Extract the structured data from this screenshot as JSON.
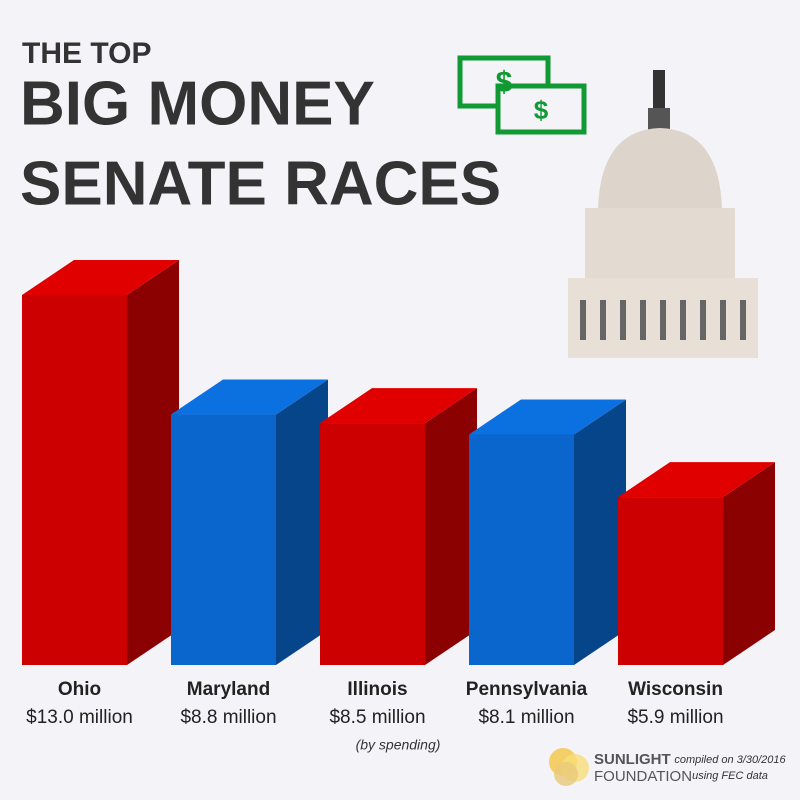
{
  "chart_data": {
    "type": "bar3d",
    "title_lines": [
      "THE TOP",
      "BIG MONEY",
      "SENATE RACES"
    ],
    "categories": [
      "Ohio",
      "Maryland",
      "Illinois",
      "Pennsylvania",
      "Wisconsin"
    ],
    "values": [
      13.0,
      8.8,
      8.5,
      8.1,
      5.9
    ],
    "value_labels": [
      "$13.0 million",
      "$8.8 million",
      "$8.5 million",
      "$8.1 million",
      "$5.9 million"
    ],
    "colors": [
      "#cc0000",
      "#0a66cc",
      "#cc0000",
      "#0a66cc",
      "#cc0000"
    ],
    "note": "(by spending)",
    "source_org": [
      "SUNLIGHT",
      "FOUNDATION"
    ],
    "source_note": [
      "compiled on 3/30/2016",
      "using FEC data"
    ]
  }
}
